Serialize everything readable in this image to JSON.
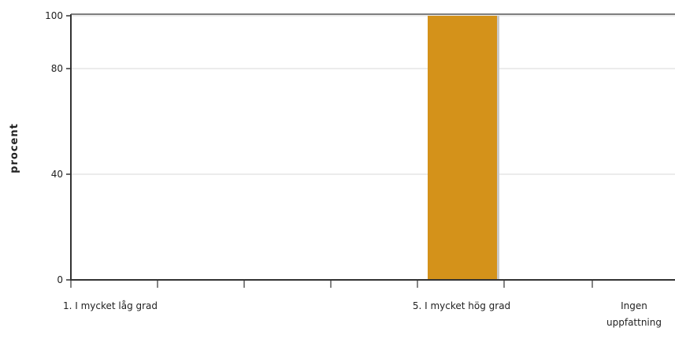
{
  "chart_data": {
    "type": "bar",
    "ylabel": "procent",
    "xlabel": "",
    "title": "",
    "ylim": [
      0,
      100
    ],
    "yticks": [
      0,
      40,
      80,
      100
    ],
    "grid": true,
    "categories": [
      [
        "1. I mycket låg grad"
      ],
      [
        ""
      ],
      [
        ""
      ],
      [
        ""
      ],
      [
        "5. I mycket hög grad"
      ],
      [
        "Ingen",
        "uppfattning"
      ]
    ],
    "values": [
      0,
      0,
      0,
      0,
      100,
      0
    ],
    "bar_color": "#D4921A",
    "bar_shadow_color": "#C9C9C9",
    "axis_color": "#333333",
    "grid_color": "#D9D9D9"
  }
}
